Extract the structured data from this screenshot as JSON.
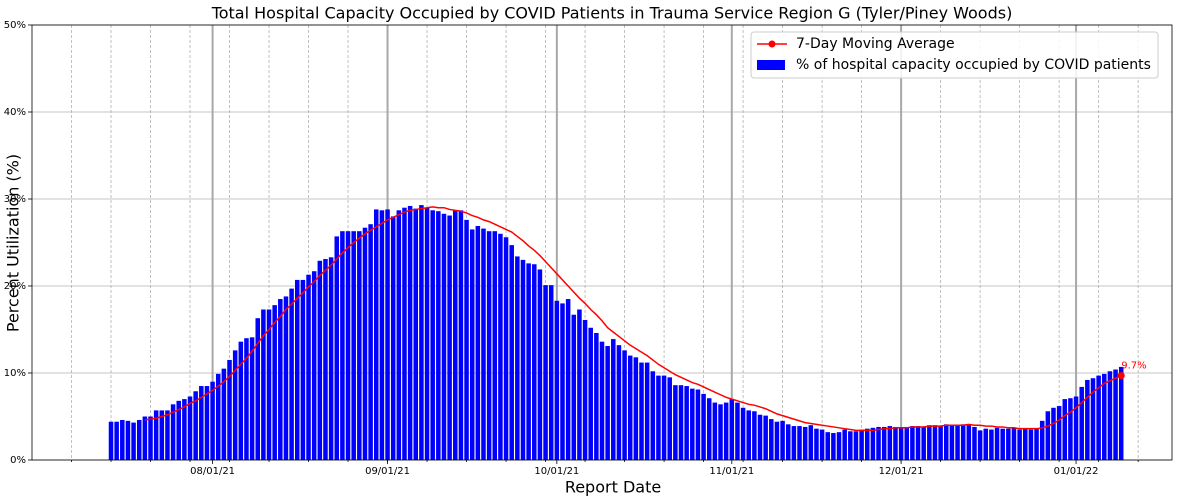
{
  "chart_data": {
    "type": "bar",
    "title": "Total Hospital Capacity Occupied by COVID Patients in Trauma Service Region G (Tyler/Piney Woods)",
    "x_label": "Report Date",
    "y_label": "Percent Utilization (%)",
    "x": [
      "07/14/21",
      "07/15/21",
      "07/16/21",
      "07/17/21",
      "07/18/21",
      "07/19/21",
      "07/20/21",
      "07/21/21",
      "07/22/21",
      "07/23/21",
      "07/24/21",
      "07/25/21",
      "07/26/21",
      "07/27/21",
      "07/28/21",
      "07/29/21",
      "07/30/21",
      "07/31/21",
      "08/01/21",
      "08/02/21",
      "08/03/21",
      "08/04/21",
      "08/05/21",
      "08/06/21",
      "08/07/21",
      "08/08/21",
      "08/09/21",
      "08/10/21",
      "08/11/21",
      "08/12/21",
      "08/13/21",
      "08/14/21",
      "08/15/21",
      "08/16/21",
      "08/17/21",
      "08/18/21",
      "08/19/21",
      "08/20/21",
      "08/21/21",
      "08/22/21",
      "08/23/21",
      "08/24/21",
      "08/25/21",
      "08/26/21",
      "08/27/21",
      "08/28/21",
      "08/29/21",
      "08/30/21",
      "08/31/21",
      "09/01/21",
      "09/02/21",
      "09/03/21",
      "09/04/21",
      "09/05/21",
      "09/06/21",
      "09/07/21",
      "09/08/21",
      "09/09/21",
      "09/10/21",
      "09/11/21",
      "09/12/21",
      "09/13/21",
      "09/14/21",
      "09/15/21",
      "09/16/21",
      "09/17/21",
      "09/18/21",
      "09/19/21",
      "09/20/21",
      "09/21/21",
      "09/22/21",
      "09/23/21",
      "09/24/21",
      "09/25/21",
      "09/26/21",
      "09/27/21",
      "09/28/21",
      "09/29/21",
      "09/30/21",
      "10/01/21",
      "10/02/21",
      "10/03/21",
      "10/04/21",
      "10/05/21",
      "10/06/21",
      "10/07/21",
      "10/08/21",
      "10/09/21",
      "10/10/21",
      "10/11/21",
      "10/12/21",
      "10/13/21",
      "10/14/21",
      "10/15/21",
      "10/16/21",
      "10/17/21",
      "10/18/21",
      "10/19/21",
      "10/20/21",
      "10/21/21",
      "10/22/21",
      "10/23/21",
      "10/24/21",
      "10/25/21",
      "10/26/21",
      "10/27/21",
      "10/28/21",
      "10/29/21",
      "10/30/21",
      "10/31/21",
      "11/01/21",
      "11/02/21",
      "11/03/21",
      "11/04/21",
      "11/05/21",
      "11/06/21",
      "11/07/21",
      "11/08/21",
      "11/09/21",
      "11/10/21",
      "11/11/21",
      "11/12/21",
      "11/13/21",
      "11/14/21",
      "11/15/21",
      "11/16/21",
      "11/17/21",
      "11/18/21",
      "11/19/21",
      "11/20/21",
      "11/21/21",
      "11/22/21",
      "11/23/21",
      "11/24/21",
      "11/25/21",
      "11/26/21",
      "11/27/21",
      "11/28/21",
      "11/29/21",
      "11/30/21",
      "12/01/21",
      "12/02/21",
      "12/03/21",
      "12/04/21",
      "12/05/21",
      "12/06/21",
      "12/07/21",
      "12/08/21",
      "12/09/21",
      "12/10/21",
      "12/11/21",
      "12/12/21",
      "12/13/21",
      "12/14/21",
      "12/15/21",
      "12/16/21",
      "12/17/21",
      "12/18/21",
      "12/19/21",
      "12/20/21",
      "12/21/21",
      "12/22/21",
      "12/23/21",
      "12/24/21",
      "12/25/21",
      "12/26/21",
      "12/27/21",
      "12/28/21",
      "12/29/21",
      "12/30/21",
      "12/31/21",
      "01/01/22",
      "01/02/22",
      "01/03/22",
      "01/04/22",
      "01/05/22",
      "01/06/22",
      "01/07/22",
      "01/08/22",
      "01/09/22"
    ],
    "series": [
      {
        "name": "7-Day Moving Average",
        "type": "line",
        "color": "#ff0000",
        "values": [
          null,
          null,
          null,
          null,
          null,
          null,
          4.6,
          4.7,
          4.8,
          5.0,
          5.2,
          5.5,
          5.8,
          6.1,
          6.5,
          6.8,
          7.2,
          7.6,
          8.0,
          8.5,
          9.0,
          9.6,
          10.3,
          11.0,
          11.7,
          12.5,
          13.4,
          14.3,
          15.0,
          15.8,
          16.5,
          17.3,
          17.9,
          18.6,
          19.2,
          19.9,
          20.5,
          21.2,
          21.8,
          22.4,
          23.1,
          23.8,
          24.4,
          25.0,
          25.5,
          26.0,
          26.4,
          26.8,
          27.2,
          27.6,
          27.9,
          28.2,
          28.5,
          28.7,
          28.8,
          28.9,
          29.0,
          29.1,
          29.0,
          29.0,
          28.8,
          28.7,
          28.6,
          28.4,
          28.1,
          27.9,
          27.6,
          27.4,
          27.1,
          26.8,
          26.5,
          26.2,
          25.7,
          25.2,
          24.6,
          24.1,
          23.5,
          22.8,
          22.1,
          21.4,
          20.7,
          20.0,
          19.3,
          18.6,
          18.0,
          17.3,
          16.7,
          16.0,
          15.2,
          14.7,
          14.2,
          13.7,
          13.2,
          12.8,
          12.4,
          12.0,
          11.5,
          11.0,
          10.6,
          10.2,
          9.8,
          9.5,
          9.2,
          8.9,
          8.7,
          8.4,
          8.1,
          7.8,
          7.5,
          7.2,
          7.0,
          6.8,
          6.6,
          6.4,
          6.3,
          6.1,
          5.9,
          5.6,
          5.3,
          5.1,
          4.9,
          4.7,
          4.5,
          4.3,
          4.2,
          4.1,
          4.0,
          3.9,
          3.8,
          3.7,
          3.6,
          3.5,
          3.4,
          3.4,
          3.4,
          3.4,
          3.5,
          3.6,
          3.6,
          3.7,
          3.7,
          3.7,
          3.8,
          3.8,
          3.8,
          3.9,
          3.9,
          3.9,
          4.0,
          4.0,
          4.0,
          4.0,
          4.1,
          4.0,
          4.0,
          3.9,
          3.9,
          3.8,
          3.8,
          3.7,
          3.7,
          3.6,
          3.6,
          3.6,
          3.6,
          3.7,
          3.9,
          4.2,
          4.6,
          5.1,
          5.5,
          6.0,
          6.6,
          7.2,
          7.8,
          8.3,
          8.8,
          9.1,
          9.4,
          9.7
        ],
        "value_labels": [
          null,
          null,
          null,
          null,
          null,
          null,
          null,
          null,
          null,
          null,
          null,
          null,
          null,
          null,
          null,
          null,
          null,
          null,
          null,
          null,
          null,
          null,
          null,
          null,
          null,
          null,
          null,
          null,
          null,
          null,
          null,
          null,
          null,
          null,
          null,
          null,
          null,
          null,
          null,
          null,
          null,
          null,
          null,
          null,
          null,
          null,
          null,
          null,
          null,
          null,
          null,
          null,
          null,
          null,
          null,
          null,
          null,
          null,
          null,
          null,
          null,
          null,
          null,
          null,
          null,
          null,
          null,
          null,
          null,
          null,
          null,
          null,
          null,
          null,
          null,
          null,
          null,
          null,
          null,
          null,
          null,
          null,
          null,
          null,
          null,
          null,
          null,
          null,
          null,
          null,
          null,
          null,
          null,
          null,
          null,
          null,
          null,
          null,
          null,
          null,
          null,
          null,
          null,
          null,
          null,
          null,
          null,
          null,
          null,
          null,
          null,
          null,
          null,
          null,
          null,
          null,
          null,
          null,
          null,
          null,
          null,
          null,
          null,
          null,
          null,
          null,
          null,
          null,
          null,
          null,
          null,
          null,
          null,
          null,
          null,
          null,
          null,
          null,
          null,
          null,
          null,
          null,
          null,
          null,
          null,
          null,
          null,
          null,
          null,
          null,
          null,
          null,
          null,
          null,
          null,
          null,
          null,
          null,
          null,
          null,
          null,
          null,
          null,
          null,
          null,
          null,
          null,
          null,
          null,
          null,
          null,
          null,
          null,
          null,
          null,
          null,
          null,
          null,
          null,
          "9.7%"
        ]
      },
      {
        "name": "% of hospital capacity occupied by COVID patients",
        "type": "bar",
        "color": "#0000ff",
        "values": [
          4.4,
          4.4,
          4.6,
          4.5,
          4.3,
          4.6,
          5.0,
          5.0,
          5.7,
          5.7,
          5.7,
          6.4,
          6.8,
          7.0,
          7.3,
          7.9,
          8.5,
          8.5,
          9.0,
          9.9,
          10.5,
          11.5,
          12.6,
          13.6,
          14.0,
          14.1,
          16.3,
          17.3,
          17.3,
          17.8,
          18.5,
          18.8,
          19.7,
          20.7,
          20.7,
          21.3,
          21.7,
          22.9,
          23.1,
          23.3,
          25.7,
          26.3,
          26.3,
          26.3,
          26.3,
          26.7,
          27.1,
          28.8,
          28.7,
          28.8,
          28.0,
          28.7,
          29.0,
          29.2,
          28.9,
          29.3,
          29.0,
          28.7,
          28.6,
          28.3,
          28.1,
          28.7,
          28.7,
          27.6,
          26.5,
          26.9,
          26.6,
          26.3,
          26.3,
          26.0,
          25.6,
          24.7,
          23.4,
          23.0,
          22.6,
          22.5,
          21.9,
          20.1,
          20.1,
          18.3,
          18.0,
          18.5,
          16.7,
          17.3,
          16.1,
          15.2,
          14.6,
          13.6,
          13.1,
          13.9,
          13.2,
          12.6,
          12.0,
          11.8,
          11.2,
          11.2,
          10.2,
          9.7,
          9.7,
          9.5,
          8.6,
          8.6,
          8.5,
          8.2,
          8.1,
          7.6,
          7.1,
          6.6,
          6.4,
          6.6,
          7.0,
          6.6,
          6.0,
          5.7,
          5.6,
          5.2,
          5.1,
          4.7,
          4.4,
          4.5,
          4.1,
          3.9,
          3.9,
          3.8,
          4.0,
          3.6,
          3.5,
          3.2,
          3.1,
          3.2,
          3.5,
          3.3,
          3.3,
          3.5,
          3.6,
          3.7,
          3.8,
          3.8,
          3.9,
          3.8,
          3.7,
          3.8,
          3.9,
          3.9,
          3.8,
          4.0,
          4.0,
          3.9,
          4.1,
          4.0,
          4.0,
          4.1,
          4.0,
          3.8,
          3.4,
          3.6,
          3.5,
          3.7,
          3.6,
          3.6,
          3.7,
          3.5,
          3.6,
          3.5,
          3.6,
          4.5,
          5.6,
          6.0,
          6.2,
          7.0,
          7.1,
          7.3,
          8.4,
          9.2,
          9.4,
          9.7,
          9.9,
          10.2,
          10.4,
          10.7
        ]
      }
    ],
    "xlim": [
      "06/30/21",
      "01/18/22"
    ],
    "xticks": [
      "08/01/21",
      "09/01/21",
      "10/01/21",
      "11/01/21",
      "12/01/21",
      "01/01/22"
    ],
    "xminorticks": [
      "07/07/21",
      "07/14/21",
      "07/21/21",
      "07/28/21",
      "08/04/21",
      "08/11/21",
      "08/18/21",
      "08/25/21",
      "09/01/21",
      "09/08/21",
      "09/15/21",
      "09/22/21",
      "09/29/21",
      "10/06/21",
      "10/13/21",
      "10/20/21",
      "10/27/21",
      "11/03/21",
      "11/10/21",
      "11/17/21",
      "11/24/21",
      "12/01/21",
      "12/08/21",
      "12/15/21",
      "12/22/21",
      "12/29/21",
      "01/05/22",
      "01/12/22"
    ],
    "ylim": [
      0,
      50
    ],
    "yticks": [
      {
        "value": 0,
        "label": "0%"
      },
      {
        "value": 10,
        "label": "10%"
      },
      {
        "value": 20,
        "label": "20%"
      },
      {
        "value": 30,
        "label": "30%"
      },
      {
        "value": 40,
        "label": "40%"
      },
      {
        "value": 50,
        "label": "50%"
      }
    ],
    "grid": true,
    "legend": "upper right"
  }
}
